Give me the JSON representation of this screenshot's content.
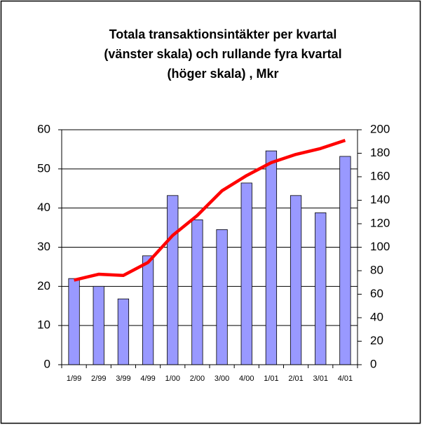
{
  "chart_data": {
    "type": "bar_line",
    "title": [
      "Totala transaktionsintäkter per kvartal",
      "(vänster skala) och rullande fyra kvartal",
      "(höger skala) , Mkr"
    ],
    "categories": [
      "1/99",
      "2/99",
      "3/99",
      "4/99",
      "1/00",
      "2/00",
      "3/00",
      "4/00",
      "1/01",
      "2/01",
      "3/01",
      "4/01"
    ],
    "series": [
      {
        "color": "#9999ff",
        "values": [
          22,
          20,
          16.8,
          27.8,
          43.2,
          37,
          34.5,
          46.4,
          54.6,
          43.2,
          38.8,
          53.2
        ]
      },
      {
        "color": "#ff0000",
        "axis": "y2",
        "values": [
          72,
          77,
          76,
          87,
          110,
          127,
          148,
          161,
          172,
          179,
          184,
          191
        ]
      }
    ],
    "ylim": [
      0,
      60
    ],
    "yticks": [
      0,
      10,
      20,
      30,
      40,
      50,
      60
    ],
    "y2lim": [
      0,
      200
    ],
    "y2ticks": [
      0,
      20,
      40,
      60,
      80,
      100,
      120,
      140,
      160,
      180,
      200
    ],
    "grid": true
  }
}
